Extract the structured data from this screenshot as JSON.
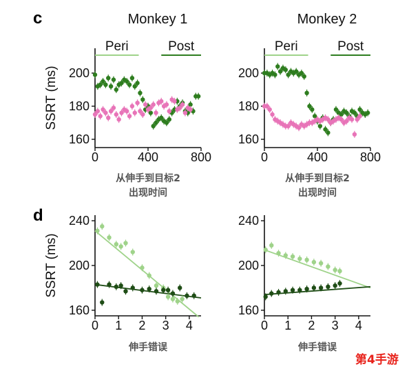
{
  "panel_letters": {
    "c": "c",
    "d": "d"
  },
  "watermark": "第4手游",
  "colors": {
    "dark_green": "#2e7d1f",
    "pink": "#e874b8",
    "light_green": "#9fd38a",
    "very_dark_green": "#1f4d16"
  },
  "chart_data": [
    {
      "id": "c-monkey1",
      "type": "scatter",
      "title": "Monkey 1",
      "ylabel": "SSRT (ms)",
      "xlabel": "从伸手到目标2\n出现时间",
      "xlim": [
        0,
        800
      ],
      "ylim": [
        155,
        215
      ],
      "xticks": [
        0,
        400,
        800
      ],
      "yticks": [
        160,
        180,
        200
      ],
      "segments": [
        {
          "label": "Peri",
          "x": [
            0,
            330
          ],
          "color": "#9fd38a"
        },
        {
          "label": "Post",
          "x": [
            500,
            800
          ],
          "color": "#2e7d1f"
        }
      ],
      "series": [
        {
          "color": "#2e7d1f",
          "x": [
            0,
            20,
            40,
            60,
            80,
            100,
            120,
            140,
            160,
            180,
            200,
            220,
            240,
            260,
            280,
            300,
            320,
            340,
            360,
            380,
            400,
            420,
            440,
            460,
            480,
            500,
            520,
            540,
            560,
            580,
            600,
            620,
            640,
            660,
            680,
            700,
            720,
            740,
            760,
            780
          ],
          "y": [
            199,
            192,
            193,
            195,
            193,
            197,
            192,
            196,
            190,
            193,
            194,
            196,
            195,
            193,
            197,
            192,
            194,
            188,
            184,
            178,
            180,
            176,
            168,
            170,
            172,
            173,
            171,
            170,
            172,
            176,
            178,
            183,
            180,
            182,
            177,
            176,
            181,
            177,
            186,
            186
          ]
        },
        {
          "color": "#e874b8",
          "x": [
            0,
            20,
            40,
            60,
            80,
            100,
            120,
            140,
            160,
            180,
            200,
            220,
            240,
            260,
            280,
            300,
            320,
            340,
            360,
            380,
            400,
            420,
            440,
            460,
            480,
            500,
            520,
            540,
            560,
            580,
            600,
            620,
            640,
            660,
            680,
            700,
            720
          ],
          "y": [
            175,
            177,
            174,
            178,
            176,
            173,
            177,
            179,
            175,
            172,
            176,
            178,
            177,
            174,
            180,
            176,
            182,
            177,
            175,
            181,
            178,
            179,
            181,
            176,
            182,
            183,
            180,
            181,
            177,
            184,
            183,
            178,
            179,
            181,
            176,
            179,
            178
          ]
        }
      ]
    },
    {
      "id": "c-monkey2",
      "type": "scatter",
      "title": "Monkey 2",
      "ylabel": "",
      "xlabel": "从伸手到目标2\n出现时间",
      "xlim": [
        0,
        800
      ],
      "ylim": [
        155,
        215
      ],
      "xticks": [
        0,
        400,
        800
      ],
      "yticks": [
        160,
        180,
        200
      ],
      "segments": [
        {
          "label": "Peri",
          "x": [
            0,
            330
          ],
          "color": "#9fd38a"
        },
        {
          "label": "Post",
          "x": [
            500,
            800
          ],
          "color": "#2e7d1f"
        }
      ],
      "series": [
        {
          "color": "#2e7d1f",
          "x": [
            0,
            20,
            40,
            60,
            80,
            100,
            120,
            140,
            160,
            180,
            200,
            220,
            240,
            260,
            280,
            300,
            320,
            340,
            360,
            380,
            400,
            420,
            440,
            460,
            480,
            500,
            520,
            540,
            560,
            580,
            600,
            620,
            640,
            660,
            680,
            700,
            720,
            740,
            760,
            780
          ],
          "y": [
            200,
            200,
            199,
            200,
            199,
            204,
            201,
            203,
            202,
            199,
            201,
            200,
            201,
            199,
            200,
            198,
            188,
            180,
            178,
            174,
            171,
            168,
            173,
            166,
            164,
            170,
            172,
            178,
            176,
            175,
            177,
            176,
            174,
            177,
            176,
            174,
            178,
            176,
            175,
            176
          ]
        },
        {
          "color": "#e874b8",
          "x": [
            0,
            20,
            40,
            60,
            80,
            100,
            120,
            140,
            160,
            180,
            200,
            220,
            240,
            260,
            280,
            300,
            320,
            340,
            360,
            380,
            400,
            420,
            440,
            460,
            480,
            500,
            520,
            540,
            560,
            580,
            600,
            620,
            640,
            660,
            680,
            700,
            720
          ],
          "y": [
            180,
            180,
            178,
            175,
            172,
            171,
            170,
            169,
            168,
            168,
            170,
            169,
            168,
            167,
            169,
            168,
            169,
            170,
            170,
            171,
            172,
            171,
            172,
            173,
            172,
            170,
            171,
            172,
            173,
            172,
            170,
            171,
            173,
            172,
            163,
            172,
            174
          ]
        }
      ]
    },
    {
      "id": "d-monkey1",
      "type": "scatter",
      "title": "",
      "ylabel": "SSRT (ms)",
      "xlabel": "伸手错误",
      "xlim": [
        0,
        4.5
      ],
      "ylim": [
        155,
        245
      ],
      "xticks": [
        0,
        1,
        2,
        3,
        4
      ],
      "yticks": [
        160,
        200,
        240
      ],
      "series": [
        {
          "color": "#9fd38a",
          "x": [
            0.1,
            0.3,
            0.6,
            0.9,
            1.1,
            1.3,
            1.6,
            2.0,
            2.3,
            2.6,
            2.9,
            3.1,
            3.3,
            3.5,
            3.7
          ],
          "y": [
            231,
            235,
            225,
            219,
            217,
            220,
            212,
            198,
            191,
            182,
            180,
            172,
            170,
            168,
            170
          ],
          "fit": [
            [
              0,
              231
            ],
            [
              4.4,
              154
            ]
          ]
        },
        {
          "color": "#1f4d16",
          "x": [
            0.1,
            0.3,
            0.6,
            0.9,
            1.1,
            1.3,
            1.6,
            2.0,
            2.3,
            2.6,
            2.9,
            3.1,
            3.3,
            3.6,
            3.9,
            4.2
          ],
          "y": [
            183,
            167,
            183,
            181,
            182,
            177,
            180,
            178,
            179,
            177,
            178,
            178,
            175,
            180,
            173,
            173
          ],
          "fit": [
            [
              0,
              183
            ],
            [
              4.5,
              171
            ]
          ]
        }
      ]
    },
    {
      "id": "d-monkey2",
      "type": "scatter",
      "title": "",
      "ylabel": "",
      "xlabel": "伸手错误",
      "xlim": [
        0,
        4.5
      ],
      "ylim": [
        155,
        245
      ],
      "xticks": [
        0,
        1,
        2,
        3,
        4
      ],
      "yticks": [
        160,
        200,
        240
      ],
      "series": [
        {
          "color": "#9fd38a",
          "x": [
            0.05,
            0.3,
            0.6,
            0.9,
            1.2,
            1.5,
            1.8,
            2.1,
            2.4,
            2.7,
            3.0,
            3.2
          ],
          "y": [
            214,
            218,
            211,
            209,
            208,
            206,
            205,
            203,
            202,
            199,
            196,
            195
          ],
          "fit": [
            [
              0,
              214
            ],
            [
              4.5,
              180
            ]
          ]
        },
        {
          "color": "#1f4d16",
          "x": [
            0.05,
            0.3,
            0.6,
            0.9,
            1.2,
            1.5,
            1.8,
            2.1,
            2.4,
            2.7,
            3.0,
            3.2
          ],
          "y": [
            172,
            175,
            176,
            177,
            178,
            178,
            179,
            180,
            180,
            181,
            182,
            184
          ],
          "fit": [
            [
              0,
              174
            ],
            [
              4.5,
              181
            ]
          ]
        }
      ]
    }
  ]
}
